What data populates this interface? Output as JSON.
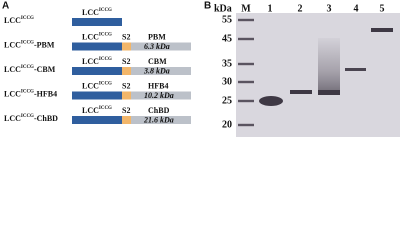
{
  "panel_a": {
    "label": "A",
    "constructs": [
      {
        "base": "LCC",
        "sup": "ICCG",
        "domain": {
          "base": "LCC",
          "sup": "ICCG"
        }
      },
      {
        "base": "LCC",
        "sup": "ICCG",
        "suffix": "-PBM",
        "domain": {
          "base": "LCC",
          "sup": "ICCG"
        },
        "linker": "S2",
        "module": "PBM",
        "size": "6.3 kDa"
      },
      {
        "base": "LCC",
        "sup": "ICCG",
        "suffix": "-CBM",
        "domain": {
          "base": "LCC",
          "sup": "ICCG"
        },
        "linker": "S2",
        "module": "CBM",
        "size": "3.8 kDa"
      },
      {
        "base": "LCC",
        "sup": "ICCG",
        "suffix": "-HFB4",
        "domain": {
          "base": "LCC",
          "sup": "ICCG"
        },
        "linker": "S2",
        "module": "HFB4",
        "size": "10.2 kDa"
      },
      {
        "base": "LCC",
        "sup": "ICCG",
        "suffix": "-ChBD",
        "domain": {
          "base": "LCC",
          "sup": "ICCG"
        },
        "linker": "S2",
        "module": "ChBD",
        "size": "21.6 kDa"
      }
    ]
  },
  "panel_b": {
    "label": "B",
    "unit": "kDa",
    "marker_lane": "M",
    "lanes": [
      "1",
      "2",
      "3",
      "4",
      "5"
    ],
    "markers": [
      55,
      45,
      35,
      30,
      25,
      20
    ]
  }
}
